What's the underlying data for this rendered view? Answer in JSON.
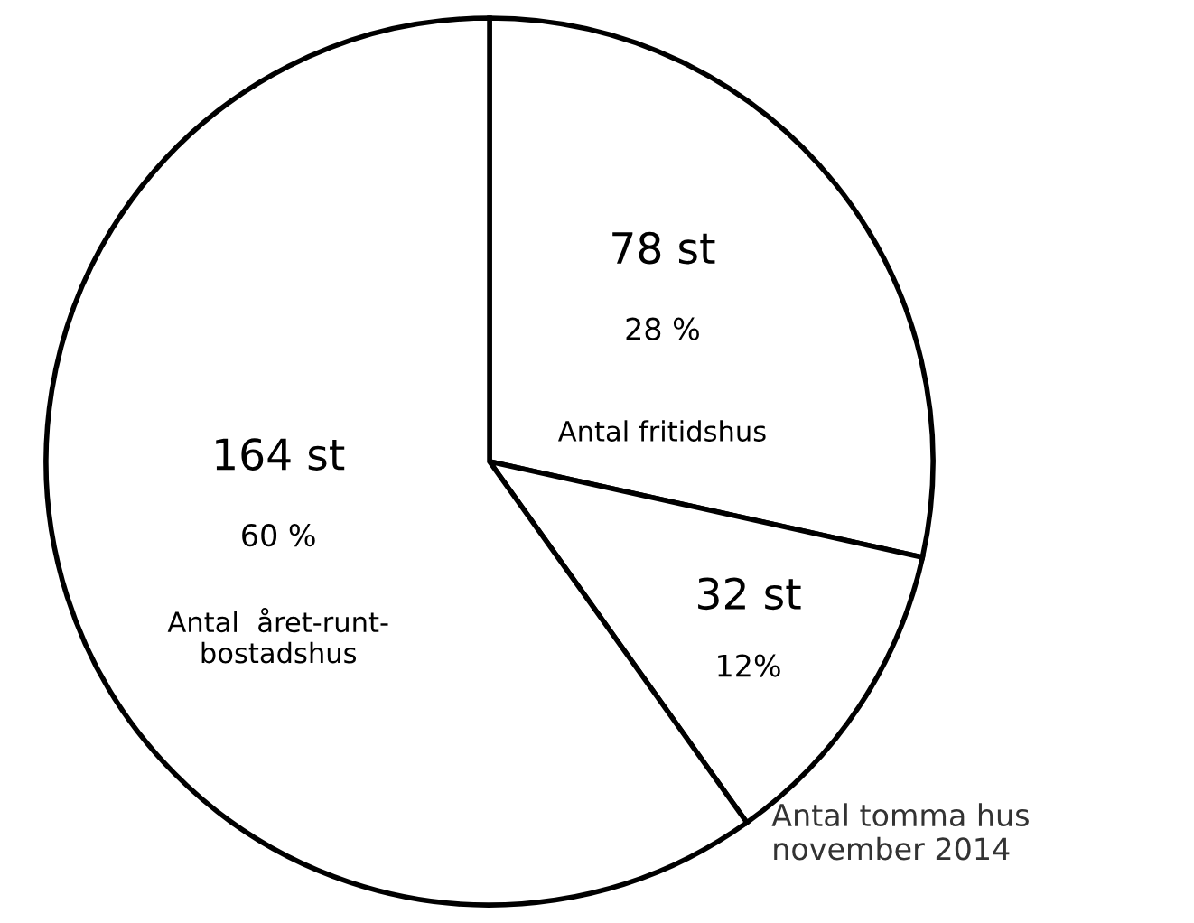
{
  "chart_data": {
    "type": "pie",
    "categories": [
      "Antal fritidshus",
      "Antal tomma hus\nnovember 2014",
      "Antal  året-runt-\nbostadshus"
    ],
    "values": [
      78,
      32,
      164
    ],
    "colors": [
      "#ffffff",
      "#ffffff",
      "#ffffff"
    ],
    "value_labels": [
      "78 st",
      "32 st",
      "164 st"
    ],
    "annotations": [
      "28 %",
      "12%",
      "60 %"
    ],
    "legend": false
  }
}
